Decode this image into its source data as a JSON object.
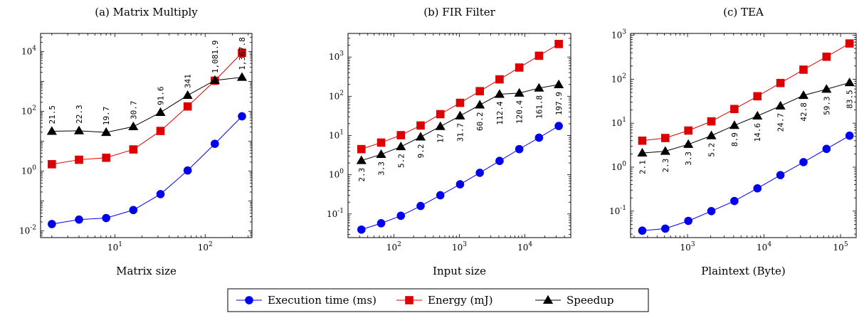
{
  "legend": {
    "placement": "bottom-center",
    "items": [
      {
        "label": "Execution time (ms)",
        "color": "#0000ee",
        "marker": "circle"
      },
      {
        "label": "Energy (mJ)",
        "color": "#dd0000",
        "marker": "square"
      },
      {
        "label": "Speedup",
        "color": "#000000",
        "marker": "triangle"
      }
    ]
  },
  "chart_data": [
    {
      "type": "line",
      "title": "(a) Matrix Multiply",
      "xlabel": "Matrix size",
      "ylabel": "",
      "xscale": "log",
      "yscale": "log",
      "xlim": [
        1.5,
        330
      ],
      "ylim": [
        0.006,
        40000
      ],
      "xticks": [
        {
          "v": 10,
          "label": "10^1"
        },
        {
          "v": 100,
          "label": "10^2"
        }
      ],
      "yticks": [
        {
          "v": 0.01,
          "label": "10^-2"
        },
        {
          "v": 1,
          "label": "10^0"
        },
        {
          "v": 100,
          "label": "10^2"
        },
        {
          "v": 10000,
          "label": "10^4"
        }
      ],
      "x": [
        2,
        4,
        8,
        16,
        32,
        64,
        128,
        256
      ],
      "series": [
        {
          "name": "Execution time (ms)",
          "values": [
            0.017,
            0.024,
            0.027,
            0.05,
            0.17,
            1.05,
            8.2,
            68
          ]
        },
        {
          "name": "Energy (mJ)",
          "values": [
            1.7,
            2.4,
            2.8,
            5.3,
            22,
            145,
            1050,
            9000
          ]
        },
        {
          "name": "Speedup",
          "values": [
            21.5,
            22.3,
            19.7,
            30.7,
            91.6,
            341,
            1081.9,
            1367.8
          ]
        }
      ],
      "data_labels": [
        "21.5",
        "22.3",
        "19.7",
        "30.7",
        "91.6",
        "341",
        "1,081.9",
        "1,367.8"
      ]
    },
    {
      "type": "line",
      "title": "(b) FIR Filter",
      "xlabel": "Input size",
      "ylabel": "",
      "xscale": "log",
      "yscale": "log",
      "xlim": [
        20,
        50000
      ],
      "ylim": [
        0.025,
        4000
      ],
      "xticks": [
        {
          "v": 100,
          "label": "10^2"
        },
        {
          "v": 1000,
          "label": "10^3"
        },
        {
          "v": 10000,
          "label": "10^4"
        }
      ],
      "yticks": [
        {
          "v": 0.1,
          "label": "10^-1"
        },
        {
          "v": 1,
          "label": "10^0"
        },
        {
          "v": 10,
          "label": "10^1"
        },
        {
          "v": 100,
          "label": "10^2"
        },
        {
          "v": 1000,
          "label": "10^3"
        }
      ],
      "x": [
        32,
        64,
        128,
        256,
        512,
        1024,
        2048,
        4096,
        8192,
        16384,
        32768
      ],
      "series": [
        {
          "name": "Execution time (ms)",
          "values": [
            0.04,
            0.058,
            0.09,
            0.16,
            0.3,
            0.57,
            1.12,
            2.25,
            4.5,
            8.8,
            17.5
          ]
        },
        {
          "name": "Energy (mJ)",
          "values": [
            4.5,
            6.6,
            10.2,
            18,
            35,
            68,
            135,
            270,
            540,
            1080,
            2150
          ]
        },
        {
          "name": "Speedup",
          "values": [
            2.3,
            3.3,
            5.2,
            9.2,
            17,
            31.7,
            60.2,
            112.4,
            120.4,
            161.8,
            197.9
          ]
        }
      ],
      "data_labels": [
        "2.3",
        "3.3",
        "5.2",
        "9.2",
        "17",
        "31.7",
        "60.2",
        "112.4",
        "120.4",
        "161.8",
        "197.9"
      ]
    },
    {
      "type": "line",
      "title": "(c) TEA",
      "xlabel": "Plaintext (Byte)",
      "ylabel": "",
      "xscale": "log",
      "yscale": "log",
      "xlim": [
        180,
        160000
      ],
      "ylim": [
        0.025,
        1100
      ],
      "xticks": [
        {
          "v": 1000,
          "label": "10^3"
        },
        {
          "v": 10000,
          "label": "10^4"
        },
        {
          "v": 100000,
          "label": "10^5"
        }
      ],
      "yticks": [
        {
          "v": 0.1,
          "label": "10^-1"
        },
        {
          "v": 1,
          "label": "10^0"
        },
        {
          "v": 10,
          "label": "10^1"
        },
        {
          "v": 100,
          "label": "10^2"
        },
        {
          "v": 1000,
          "label": "10^3"
        }
      ],
      "x": [
        256,
        512,
        1024,
        2048,
        4096,
        8192,
        16384,
        32768,
        65536,
        131072
      ],
      "series": [
        {
          "name": "Execution time (ms)",
          "values": [
            0.036,
            0.04,
            0.06,
            0.1,
            0.17,
            0.33,
            0.66,
            1.3,
            2.6,
            5.2
          ]
        },
        {
          "name": "Energy (mJ)",
          "values": [
            4.0,
            4.6,
            6.8,
            11,
            21,
            41,
            82,
            165,
            325,
            650
          ]
        },
        {
          "name": "Speedup",
          "values": [
            2.1,
            2.3,
            3.3,
            5.2,
            8.9,
            14.6,
            24.7,
            42.8,
            59.3,
            83.5
          ]
        }
      ],
      "data_labels": [
        "2.1",
        "2.3",
        "3.3",
        "5.2",
        "8.9",
        "14.6",
        "24.7",
        "42.8",
        "59.3",
        "83.5"
      ]
    }
  ]
}
